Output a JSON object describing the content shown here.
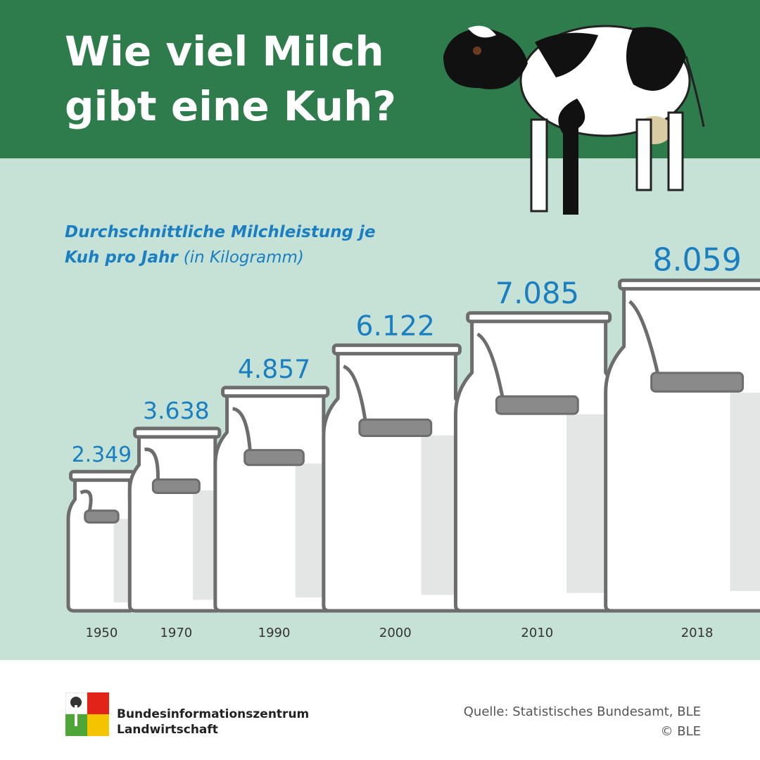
{
  "chart_data": {
    "type": "bar",
    "title": "Wie viel Milch gibt eine Kuh?",
    "subtitle": "Durchschnittliche Milchleistung je Kuh pro Jahr",
    "unit": "(in Kilogramm)",
    "categories": [
      "1950",
      "1970",
      "1990",
      "2000",
      "2010",
      "2018"
    ],
    "values": [
      2349,
      3638,
      4857,
      6122,
      7085,
      8059
    ],
    "value_labels": [
      "2.349",
      "3.638",
      "4.857",
      "6.122",
      "7.085",
      "8.059"
    ],
    "color": "#ffffff",
    "label_color": "#1a7fc1",
    "source": "Quelle: Statistisches Bundesamt, BLE",
    "copyright": "© BLE",
    "logo": [
      "Bundesinformationszentrum",
      "Landwirtschaft"
    ]
  }
}
